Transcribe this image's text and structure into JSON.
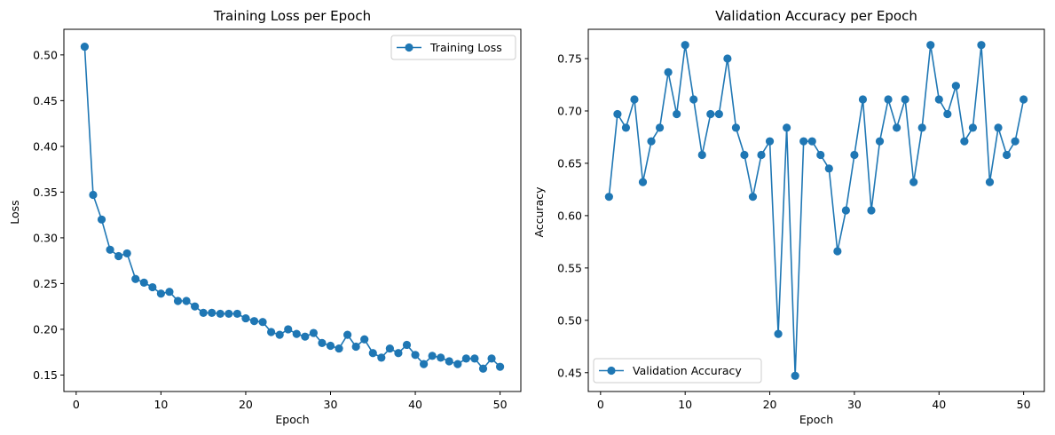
{
  "colors": {
    "series": "#1f77b4",
    "axis": "#000000",
    "legend_border": "#cccccc",
    "background": "#ffffff"
  },
  "chart_data": [
    {
      "type": "line",
      "title": "Training Loss per Epoch",
      "xlabel": "Epoch",
      "ylabel": "Loss",
      "xlim": [
        -1.45,
        52.45
      ],
      "ylim": [
        0.132,
        0.528
      ],
      "xticks": [
        0,
        10,
        20,
        30,
        40,
        50
      ],
      "yticks": [
        0.15,
        0.2,
        0.25,
        0.3,
        0.35,
        0.4,
        0.45,
        0.5
      ],
      "ytick_labels": [
        "0.15",
        "0.20",
        "0.25",
        "0.30",
        "0.35",
        "0.40",
        "0.45",
        "0.50"
      ],
      "grid": false,
      "legend_position": "upper right",
      "marker": "circle",
      "series": [
        {
          "name": "Training Loss",
          "x": [
            1,
            2,
            3,
            4,
            5,
            6,
            7,
            8,
            9,
            10,
            11,
            12,
            13,
            14,
            15,
            16,
            17,
            18,
            19,
            20,
            21,
            22,
            23,
            24,
            25,
            26,
            27,
            28,
            29,
            30,
            31,
            32,
            33,
            34,
            35,
            36,
            37,
            38,
            39,
            40,
            41,
            42,
            43,
            44,
            45,
            46,
            47,
            48,
            49,
            50
          ],
          "y": [
            0.509,
            0.347,
            0.32,
            0.287,
            0.28,
            0.283,
            0.255,
            0.251,
            0.246,
            0.239,
            0.241,
            0.231,
            0.231,
            0.225,
            0.218,
            0.218,
            0.217,
            0.217,
            0.217,
            0.212,
            0.209,
            0.208,
            0.197,
            0.194,
            0.2,
            0.195,
            0.192,
            0.196,
            0.185,
            0.182,
            0.179,
            0.194,
            0.181,
            0.189,
            0.174,
            0.169,
            0.179,
            0.174,
            0.183,
            0.172,
            0.162,
            0.171,
            0.169,
            0.165,
            0.162,
            0.168,
            0.168,
            0.157,
            0.168,
            0.159
          ]
        }
      ]
    },
    {
      "type": "line",
      "title": "Validation Accuracy per Epoch",
      "xlabel": "Epoch",
      "ylabel": "Accuracy",
      "xlim": [
        -1.45,
        52.45
      ],
      "ylim": [
        0.432,
        0.778
      ],
      "xticks": [
        0,
        10,
        20,
        30,
        40,
        50
      ],
      "yticks": [
        0.45,
        0.5,
        0.55,
        0.6,
        0.65,
        0.7,
        0.75
      ],
      "ytick_labels": [
        "0.45",
        "0.50",
        "0.55",
        "0.60",
        "0.65",
        "0.70",
        "0.75"
      ],
      "grid": false,
      "legend_position": "lower left",
      "marker": "circle",
      "series": [
        {
          "name": "Validation Accuracy",
          "x": [
            1,
            2,
            3,
            4,
            5,
            6,
            7,
            8,
            9,
            10,
            11,
            12,
            13,
            14,
            15,
            16,
            17,
            18,
            19,
            20,
            21,
            22,
            23,
            24,
            25,
            26,
            27,
            28,
            29,
            30,
            31,
            32,
            33,
            34,
            35,
            36,
            37,
            38,
            39,
            40,
            41,
            42,
            43,
            44,
            45,
            46,
            47,
            48,
            49,
            50
          ],
          "y": [
            0.618,
            0.697,
            0.684,
            0.711,
            0.632,
            0.671,
            0.684,
            0.737,
            0.697,
            0.763,
            0.711,
            0.658,
            0.697,
            0.697,
            0.75,
            0.684,
            0.658,
            0.618,
            0.658,
            0.671,
            0.487,
            0.684,
            0.447,
            0.671,
            0.671,
            0.658,
            0.645,
            0.566,
            0.605,
            0.658,
            0.711,
            0.605,
            0.671,
            0.711,
            0.684,
            0.711,
            0.632,
            0.684,
            0.763,
            0.711,
            0.697,
            0.724,
            0.671,
            0.684,
            0.763,
            0.632,
            0.684,
            0.658,
            0.671,
            0.711
          ]
        }
      ]
    }
  ]
}
